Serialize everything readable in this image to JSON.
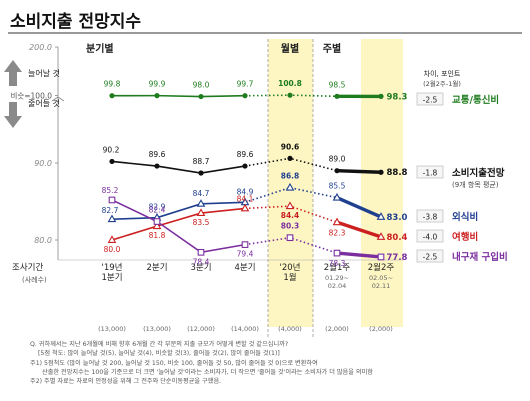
{
  "title": "소비지출 전망지수",
  "chart_data": {
    "type": "line",
    "categories": [
      "'19년 1분기",
      "2분기",
      "3분기",
      "4분기",
      "'20년 1월",
      "2월1주",
      "2월2주"
    ],
    "category_labels": [
      [
        "'19년",
        "1분기"
      ],
      [
        "2분기"
      ],
      [
        "3분기"
      ],
      [
        "4분기"
      ],
      [
        "'20년",
        "1월"
      ],
      [
        "2월1주",
        "01.29~",
        "02.04"
      ],
      [
        "2월2주",
        "02.05~",
        "02.11"
      ]
    ],
    "sample_sizes": [
      "(13,000)",
      "(13,000)",
      "(12,000)",
      "(14,000)",
      "(4,000)",
      "(2,000)",
      "(2,000)"
    ],
    "sections": [
      "분기별",
      "월별",
      "주별"
    ],
    "y_ticks": [
      200.0,
      90.0,
      80.0
    ],
    "y_tick_labels": [
      "200.0",
      "90.0",
      "80.0"
    ],
    "y_axis": {
      "up_label": "늘어날 것",
      "neutral_label": "비슷=100.0",
      "down_label": "줄어들 것",
      "period_label": "조사기간",
      "sample_label": "(사례수)"
    },
    "diff_header": [
      "차이, 포인트",
      "(2월2주-1월)"
    ],
    "series": [
      {
        "name": "교통/통신비",
        "color": "#1e7b1e",
        "marker": "circle-filled",
        "values": [
          99.8,
          99.9,
          98.0,
          99.7,
          100.8,
          98.5,
          98.3
        ],
        "labels": [
          "99.8",
          "99.9",
          "98.0",
          "99.7",
          "100.8",
          "98.5",
          "98.3"
        ],
        "diff": "-2.5"
      },
      {
        "name": "소비지출전망",
        "sub": "(9개 항목 평균)",
        "color": "#111111",
        "marker": "circle-filled",
        "values": [
          90.2,
          89.6,
          88.7,
          89.6,
          90.6,
          89.0,
          88.8
        ],
        "labels": [
          "90.2",
          "89.6",
          "88.7",
          "89.6",
          "90.6",
          "89.0",
          "88.8"
        ],
        "diff": "-1.8"
      },
      {
        "name": "외식비",
        "color": "#1f3f8f",
        "marker": "triangle-open",
        "values": [
          82.7,
          82.9,
          84.7,
          84.9,
          86.8,
          85.5,
          83.0
        ],
        "labels": [
          "82.7",
          "82.9",
          "84.7",
          "84.9",
          "86.8",
          "85.5",
          "83.0"
        ],
        "diff": "-3.8"
      },
      {
        "name": "여행비",
        "color": "#cc2020",
        "marker": "triangle-open",
        "values": [
          80.0,
          81.8,
          83.5,
          84.1,
          84.4,
          82.3,
          80.4
        ],
        "labels": [
          "80.0",
          "81.8",
          "83.5",
          "84.1",
          "84.4",
          "82.3",
          "80.4"
        ],
        "diff": "-4.0"
      },
      {
        "name": "내구재 구입비",
        "color": "#7b2f9f",
        "marker": "square-open",
        "values": [
          85.2,
          82.4,
          78.4,
          79.4,
          80.3,
          78.3,
          77.8
        ],
        "labels": [
          "85.2",
          "82.4",
          "78.4",
          "79.4",
          "80.3",
          "78.3",
          "77.8"
        ],
        "diff": "-2.5"
      }
    ]
  },
  "notes": [
    "Q. 귀하께서는 지난 6개월에 비해 향후 6개월 간 각 부문의 지출 규모가 어떻게 변할 것 같으십니까?",
    "[5점 척도: 많이 늘어날 것(5), 늘어날 것(4), 비슷할 것(3), 줄어들 것(2), 많이 줄어들 것(1)]",
    "주1) 5점척도 (많이 늘어날 것 200, 늘어날 것 150, 비슷 100, 줄어들 것 50, 많이 줄어들 것 0)으로 변환하여",
    "산출한 전망지수는 100을 기준으로 더 크면 '늘어날 것'이라는 소비자가, 더 작으면 '줄어들 것'이라는 소비자가 더 많음을 의미함",
    "주2) 주별 자료는 자료의 안정성을 위해 그 전주와 단순이동평균을 구했음."
  ]
}
